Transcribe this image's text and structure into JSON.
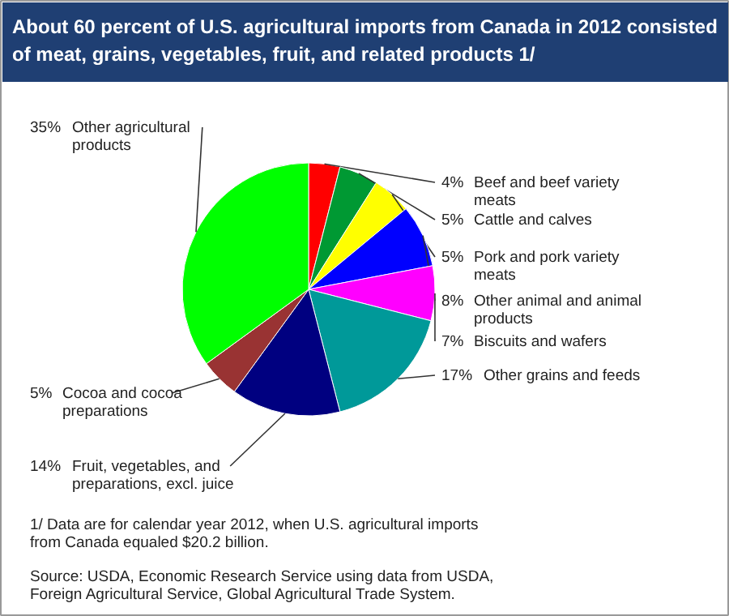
{
  "chart_data": {
    "type": "pie",
    "title": "About 60 percent of U.S. agricultural imports from Canada in 2012 consisted of meat, grains, vegetables, fruit, and related products 1/",
    "categories": [
      "Beef and beef variety meats",
      "Cattle and calves",
      "Pork and pork variety meats",
      "Other animal and animal products",
      "Biscuits and wafers",
      "Other grains and feeds",
      "Fruit, vegetables, and preparations, excl. juice",
      "Cocoa and cocoa preparations",
      "Other agricultural products"
    ],
    "values": [
      4,
      5,
      5,
      8,
      7,
      17,
      14,
      5,
      35
    ],
    "colors": [
      "#ff0000",
      "#009933",
      "#ffff00",
      "#0000ff",
      "#ff00ff",
      "#009999",
      "#000080",
      "#993333",
      "#00ff00"
    ],
    "value_labels": [
      "4%",
      "5%",
      "5%",
      "8%",
      "7%",
      "17%",
      "14%",
      "5%",
      "35%"
    ],
    "legend": false,
    "annotations": [
      "1/ Data are for calendar year 2012, when U.S. agricultural imports from Canada equaled $20.2 billion.",
      "Source: USDA, Economic Research Service using data from USDA, Foreign Agricultural Service, Global Agricultural Trade System."
    ]
  }
}
